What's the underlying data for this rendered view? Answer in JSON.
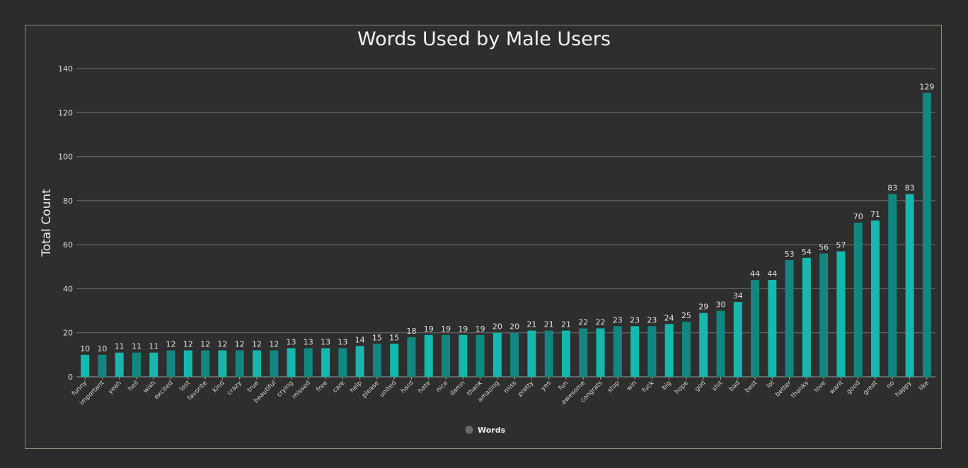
{
  "chart_data": {
    "type": "bar",
    "title": "Words Used by Male Users",
    "xlabel": "",
    "ylabel": "Total Count",
    "ylim": [
      0,
      140
    ],
    "yticks": [
      0,
      20,
      40,
      60,
      80,
      100,
      120,
      140
    ],
    "grid": true,
    "legend_position": "bottom",
    "series": [
      {
        "name": "Words",
        "values": [
          10,
          10,
          11,
          11,
          11,
          12,
          12,
          12,
          12,
          12,
          12,
          12,
          13,
          13,
          13,
          13,
          14,
          15,
          15,
          18,
          19,
          19,
          19,
          19,
          20,
          20,
          21,
          21,
          21,
          22,
          22,
          23,
          23,
          23,
          24,
          25,
          29,
          30,
          34,
          44,
          44,
          53,
          54,
          56,
          57,
          70,
          71,
          83,
          83,
          129
        ]
      }
    ],
    "categories": [
      "funny",
      "important",
      "yeah",
      "hell",
      "wish",
      "excited",
      "lost",
      "favorite",
      "kind",
      "crazy",
      "true",
      "beautiful",
      "crying",
      "missed",
      "free",
      "care",
      "help",
      "please",
      "united",
      "hard",
      "hate",
      "nice",
      "damn",
      "thank",
      "amazing",
      "miss",
      "pretty",
      "yes",
      "fun",
      "awesome",
      "congrats",
      "stop",
      "win",
      "fuck",
      "big",
      "hope",
      "god",
      "shit",
      "bad",
      "best",
      "lol",
      "better",
      "thanks",
      "love",
      "want",
      "good",
      "great",
      "no",
      "happy",
      "like"
    ],
    "colors": {
      "bar_light": "#15b8ad",
      "bar_dark": "#11877f",
      "legend_swatch": "#6a6a6a"
    }
  }
}
